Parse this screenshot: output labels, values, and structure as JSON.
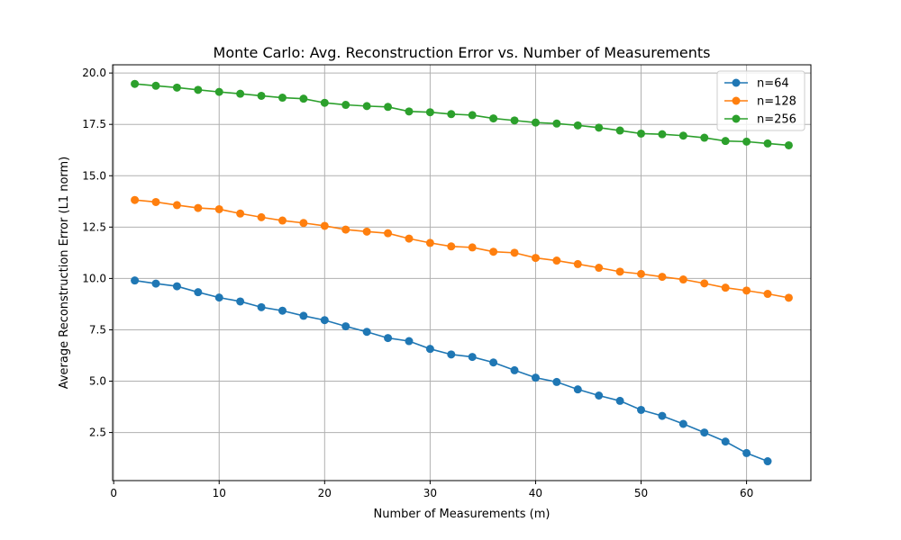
{
  "chart_data": {
    "type": "line",
    "title": "Monte Carlo: Avg. Reconstruction Error vs. Number of Measurements",
    "xlabel": "Number of Measurements (m)",
    "ylabel": "Average Reconstruction Error (L1 norm)",
    "xlim": [
      -0.1,
      66.1
    ],
    "ylim": [
      0.16,
      20.4
    ],
    "xticks": [
      0,
      10,
      20,
      30,
      40,
      50,
      60
    ],
    "yticks": [
      2.5,
      5.0,
      7.5,
      10.0,
      12.5,
      15.0,
      17.5,
      20.0
    ],
    "xtick_labels": [
      "0",
      "10",
      "20",
      "30",
      "40",
      "50",
      "60"
    ],
    "ytick_labels": [
      "2.5",
      "5.0",
      "7.5",
      "10.0",
      "12.5",
      "15.0",
      "17.5",
      "20.0"
    ],
    "grid": true,
    "legend_position": "top-right",
    "series": [
      {
        "name": "n=64",
        "color": "#1f77b4",
        "x": [
          2,
          4,
          6,
          8,
          10,
          12,
          14,
          16,
          18,
          20,
          22,
          24,
          26,
          28,
          30,
          32,
          34,
          36,
          38,
          40,
          42,
          44,
          46,
          48,
          50,
          52,
          54,
          56,
          58,
          60,
          62
        ],
        "values": [
          9.9,
          9.75,
          9.62,
          9.33,
          9.07,
          8.88,
          8.6,
          8.43,
          8.18,
          7.97,
          7.67,
          7.4,
          7.1,
          6.95,
          6.57,
          6.3,
          6.18,
          5.91,
          5.53,
          5.17,
          4.96,
          4.6,
          4.3,
          4.04,
          3.6,
          3.31,
          2.92,
          2.5,
          2.06,
          1.5,
          1.1
        ]
      },
      {
        "name": "n=128",
        "color": "#ff7f0e",
        "x": [
          2,
          4,
          6,
          8,
          10,
          12,
          14,
          16,
          18,
          20,
          22,
          24,
          26,
          28,
          30,
          32,
          34,
          36,
          38,
          40,
          42,
          44,
          46,
          48,
          50,
          52,
          54,
          56,
          58,
          60,
          62,
          64
        ],
        "values": [
          13.82,
          13.72,
          13.57,
          13.43,
          13.37,
          13.16,
          12.98,
          12.82,
          12.7,
          12.56,
          12.38,
          12.28,
          12.2,
          11.94,
          11.73,
          11.56,
          11.51,
          11.3,
          11.25,
          11.0,
          10.87,
          10.7,
          10.52,
          10.33,
          10.22,
          10.08,
          9.95,
          9.76,
          9.55,
          9.41,
          9.25,
          9.06
        ]
      },
      {
        "name": "n=256",
        "color": "#2ca02c",
        "x": [
          2,
          4,
          6,
          8,
          10,
          12,
          14,
          16,
          18,
          20,
          22,
          24,
          26,
          28,
          30,
          32,
          34,
          36,
          38,
          40,
          42,
          44,
          46,
          48,
          50,
          52,
          54,
          56,
          58,
          60,
          62,
          64
        ],
        "values": [
          19.47,
          19.38,
          19.29,
          19.18,
          19.08,
          18.99,
          18.89,
          18.8,
          18.75,
          18.55,
          18.45,
          18.39,
          18.35,
          18.13,
          18.09,
          18.0,
          17.95,
          17.79,
          17.69,
          17.59,
          17.54,
          17.45,
          17.34,
          17.2,
          17.05,
          17.02,
          16.95,
          16.85,
          16.69,
          16.66,
          16.57,
          16.48
        ]
      }
    ]
  }
}
